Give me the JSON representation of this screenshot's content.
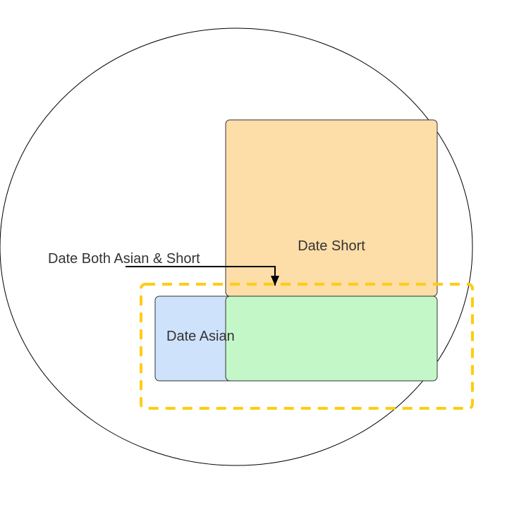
{
  "diagram": {
    "shapes": {
      "date_short": {
        "label": "Date Short",
        "fill": "#FDDDA8",
        "stroke": "#333333"
      },
      "date_asian": {
        "label": "Date Asian",
        "fill": "#CFE2FB",
        "stroke": "#333333"
      },
      "overlap": {
        "label": "",
        "fill": "#C3F7C7",
        "stroke": "#333333"
      },
      "highlight": {
        "label": "",
        "stroke": "#FFCC11"
      }
    },
    "annotation": {
      "label": "Date Both Asian & Short",
      "color": "#000000"
    },
    "outer_ellipse": {
      "stroke": "#000000"
    }
  }
}
